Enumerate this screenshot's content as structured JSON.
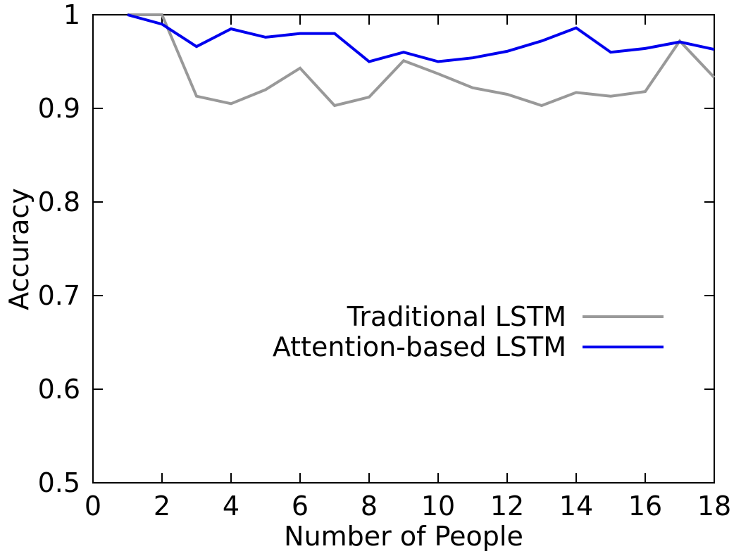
{
  "chart_data": {
    "type": "line",
    "title": "",
    "xlabel": "Number of People",
    "ylabel": "Accuracy",
    "xlim": [
      0,
      18
    ],
    "ylim": [
      0.5,
      1
    ],
    "xticks": [
      0,
      2,
      4,
      6,
      8,
      10,
      12,
      14,
      16,
      18
    ],
    "yticks": [
      0.5,
      0.6,
      0.7,
      0.8,
      0.9,
      1
    ],
    "ytick_labels": [
      "0.5",
      "0.6",
      "0.7",
      "0.8",
      "0.9",
      "1"
    ],
    "legend_position": "middle-right",
    "grid": false,
    "x": [
      1,
      2,
      3,
      4,
      5,
      6,
      7,
      8,
      9,
      10,
      11,
      12,
      13,
      14,
      15,
      16,
      17,
      18
    ],
    "series": [
      {
        "name": "Traditional LSTM",
        "color": "#999999",
        "values": [
          1.0,
          1.0,
          0.913,
          0.905,
          0.92,
          0.943,
          0.903,
          0.912,
          0.951,
          0.937,
          0.922,
          0.915,
          0.903,
          0.917,
          0.913,
          0.918,
          0.972,
          0.933
        ]
      },
      {
        "name": "Attention-based LSTM",
        "color": "#0000ee",
        "values": [
          1.0,
          0.99,
          0.966,
          0.985,
          0.976,
          0.98,
          0.98,
          0.95,
          0.96,
          0.95,
          0.954,
          0.961,
          0.972,
          0.986,
          0.96,
          0.964,
          0.971,
          0.963
        ]
      }
    ]
  }
}
